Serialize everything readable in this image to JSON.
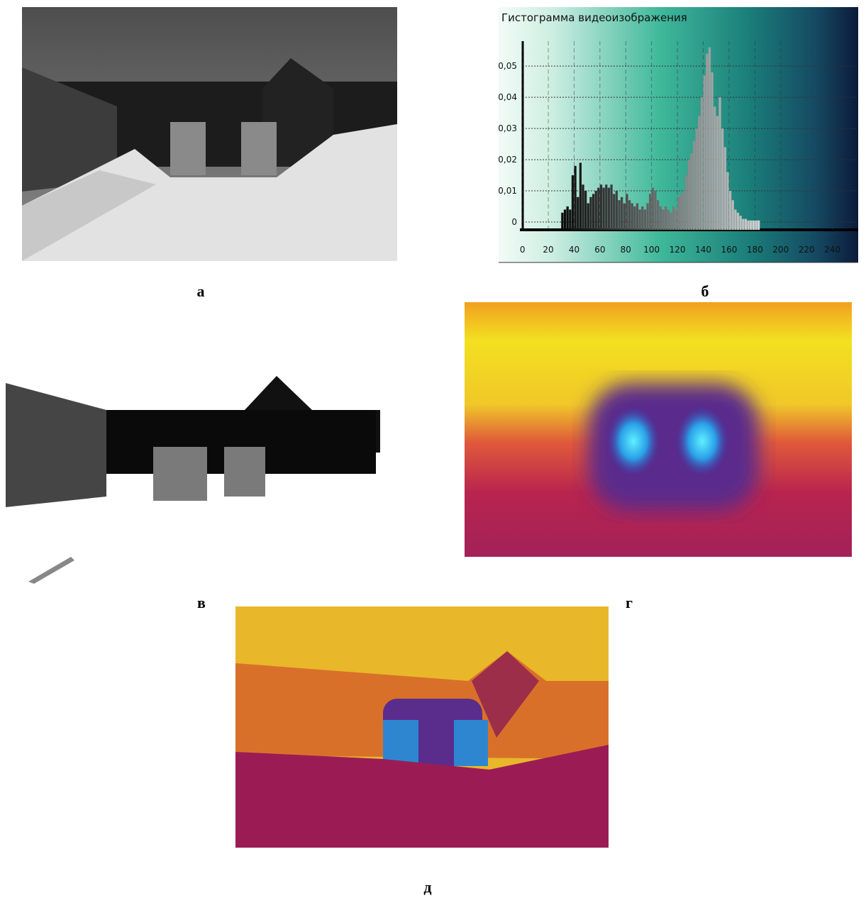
{
  "chart_data": {
    "type": "histogram",
    "title": "Гистограмма видеоизображения",
    "x": [
      30,
      32,
      34,
      36,
      38,
      40,
      42,
      44,
      46,
      48,
      50,
      52,
      54,
      56,
      58,
      60,
      62,
      64,
      66,
      68,
      70,
      72,
      74,
      76,
      78,
      80,
      82,
      84,
      86,
      88,
      90,
      92,
      94,
      96,
      98,
      100,
      102,
      104,
      106,
      108,
      110,
      112,
      114,
      116,
      118,
      120,
      122,
      124,
      126,
      128,
      130,
      132,
      134,
      136,
      138,
      140,
      142,
      144,
      146,
      148,
      150,
      152,
      154,
      156,
      158,
      160,
      162,
      164,
      166,
      168,
      170,
      172,
      174,
      176,
      178,
      180,
      182
    ],
    "values": [
      0.003,
      0.004,
      0.005,
      0.004,
      0.015,
      0.018,
      0.008,
      0.019,
      0.012,
      0.01,
      0.006,
      0.008,
      0.009,
      0.01,
      0.011,
      0.012,
      0.011,
      0.012,
      0.011,
      0.012,
      0.009,
      0.01,
      0.007,
      0.008,
      0.006,
      0.009,
      0.007,
      0.006,
      0.005,
      0.006,
      0.004,
      0.005,
      0.004,
      0.006,
      0.009,
      0.011,
      0.01,
      0.007,
      0.005,
      0.004,
      0.005,
      0.004,
      0.003,
      0.005,
      0.004,
      0.008,
      0.009,
      0.01,
      0.015,
      0.02,
      0.022,
      0.026,
      0.03,
      0.034,
      0.04,
      0.047,
      0.054,
      0.056,
      0.048,
      0.037,
      0.034,
      0.04,
      0.03,
      0.024,
      0.016,
      0.01,
      0.007,
      0.004,
      0.003,
      0.002,
      0.001,
      0.001,
      0.0005,
      0.0005,
      0.0005,
      0.0005,
      0.0005
    ],
    "xlim": [
      -2,
      260
    ],
    "ylim": [
      -0.0025,
      0.058
    ],
    "xticks": [
      0,
      20,
      40,
      60,
      80,
      100,
      120,
      140,
      160,
      180,
      200,
      220,
      240
    ],
    "yticks": [
      0,
      {
        "value": 0.01,
        "label": "0,01"
      },
      {
        "value": 0.02,
        "label": "0,02"
      },
      {
        "value": 0.03,
        "label": "0,03"
      },
      {
        "value": 0.04,
        "label": "0,04"
      },
      {
        "value": 0.05,
        "label": "0,05"
      }
    ],
    "grid": true
  },
  "panel_labels": [
    "а",
    "б",
    "в",
    "г",
    "д"
  ]
}
